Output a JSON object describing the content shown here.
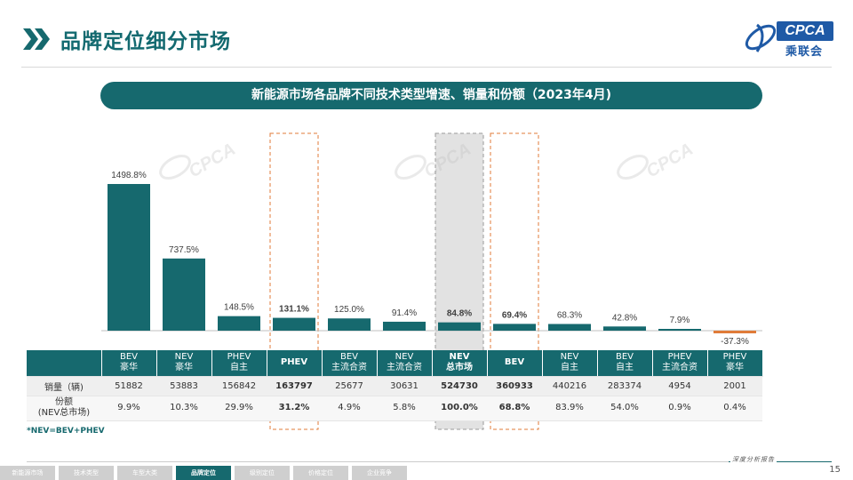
{
  "header": {
    "title": "品牌定位细分市场",
    "logo_text": "CPCA",
    "logo_sub": "乘联会"
  },
  "banner": {
    "text": "新能源市场各品牌不同技术类型增速、销量和份额（2023年4月)"
  },
  "chart_data": {
    "type": "bar",
    "categories": [
      "BEV 豪华",
      "NEV 豪华",
      "PHEV 自主",
      "PHEV",
      "BEV 主流合资",
      "NEV 主流合资",
      "NEV 总市场",
      "BEV",
      "NEV 自主",
      "BEV 自主",
      "PHEV 主流合资",
      "PHEV 豪华"
    ],
    "values": [
      1498.8,
      737.5,
      148.5,
      131.1,
      125.0,
      91.4,
      84.8,
      69.4,
      68.3,
      42.8,
      7.9,
      -37.3
    ],
    "value_labels": [
      "1498.8%",
      "737.5%",
      "148.5%",
      "131.1%",
      "125.0%",
      "91.4%",
      "84.8%",
      "69.4%",
      "68.3%",
      "42.8%",
      "7.9%",
      "-37.3%"
    ],
    "bold_labels": [
      3,
      6,
      7
    ],
    "highlight_dashed": [
      3,
      7
    ],
    "highlight_shaded": [
      6
    ],
    "colors": {
      "positive": "#16696e",
      "negative": "#e07b39",
      "dashed_box": "#e07b39",
      "shaded_box": "#bfbfbf"
    }
  },
  "table": {
    "headers": [
      [
        "BEV",
        "豪华"
      ],
      [
        "NEV",
        "豪华"
      ],
      [
        "PHEV",
        "自主"
      ],
      [
        "PHEV"
      ],
      [
        "BEV",
        "主流合资"
      ],
      [
        "NEV",
        "主流合资"
      ],
      [
        "NEV",
        "总市场"
      ],
      [
        "BEV"
      ],
      [
        "NEV",
        "自主"
      ],
      [
        "BEV",
        "自主"
      ],
      [
        "PHEV",
        "主流合资"
      ],
      [
        "PHEV",
        "豪华"
      ]
    ],
    "sales_label": "销量（辆)",
    "sales": [
      "51882",
      "53883",
      "156842",
      "163797",
      "25677",
      "30631",
      "524730",
      "360933",
      "440216",
      "283374",
      "4954",
      "2001"
    ],
    "share_label_1": "份额",
    "share_label_2": "(NEV总市场)",
    "shares": [
      "9.9%",
      "10.3%",
      "29.9%",
      "31.2%",
      "4.9%",
      "5.8%",
      "100.0%",
      "68.8%",
      "83.9%",
      "54.0%",
      "0.9%",
      "0.4%"
    ]
  },
  "note": "*NEV=BEV+PHEV",
  "footer": {
    "nav": [
      "新能源市场",
      "技术类型",
      "车型大类",
      "品牌定位",
      "级别定位",
      "价格定位",
      "企业竞争"
    ],
    "active_index": 3,
    "report_label": "深度分析报告",
    "page_number": "15"
  }
}
